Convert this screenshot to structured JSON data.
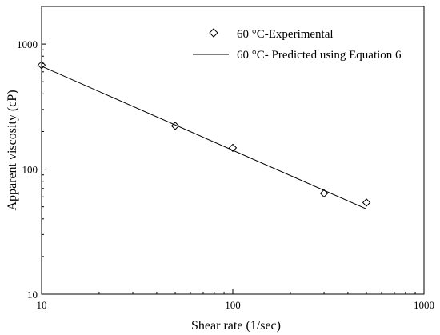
{
  "chart_data": {
    "type": "scatter",
    "xscale": "log",
    "yscale": "log",
    "xlabel": "Shear rate (1/sec)",
    "ylabel": "Apparent viscosity (cP)",
    "xlim": [
      10,
      1000
    ],
    "ylim": [
      10,
      2000
    ],
    "xticks": [
      10,
      100,
      1000
    ],
    "yticks": [
      10,
      100,
      1000
    ],
    "xtick_labels": [
      "10",
      "100",
      "1000"
    ],
    "ytick_labels": [
      "10",
      "100",
      "1000"
    ],
    "grid": false,
    "legend_position": "top-right",
    "series": [
      {
        "name": "60 °C-Experimental",
        "type": "scatter",
        "marker": "diamond-open",
        "x": [
          10,
          50,
          100,
          300,
          500
        ],
        "y": [
          680,
          222,
          148,
          64,
          54
        ]
      },
      {
        "name": "60 °C- Predicted using Equation 6",
        "type": "line",
        "x": [
          10,
          500
        ],
        "y": [
          665,
          48
        ]
      }
    ]
  }
}
